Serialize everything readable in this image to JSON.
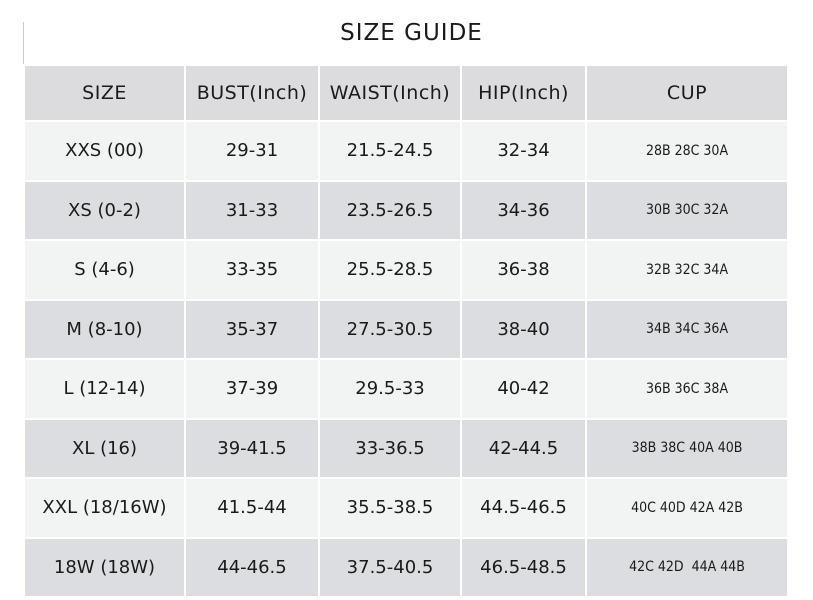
{
  "title": "SIZE GUIDE",
  "table": {
    "header": [
      "SIZE",
      "BUST(Inch)",
      "WAIST(Inch)",
      "HIP(Inch)",
      "CUP"
    ],
    "rows": [
      [
        "XXS (00)",
        "29-31",
        "21.5-24.5",
        "32-34",
        "28B 28C 30A"
      ],
      [
        "XS (0-2)",
        "31-33",
        "23.5-26.5",
        "34-36",
        "30B 30C 32A"
      ],
      [
        "S (4-6)",
        "33-35",
        "25.5-28.5",
        "36-38",
        "32B 32C 34A"
      ],
      [
        "M (8-10)",
        "35-37",
        "27.5-30.5",
        "38-40",
        "34B 34C 36A"
      ],
      [
        "L (12-14)",
        "37-39",
        "29.5-33",
        "40-42",
        "36B 36C 38A"
      ],
      [
        "XL (16)",
        "39-41.5",
        "33-36.5",
        "42-44.5",
        "38B 38C 40A 40B"
      ],
      [
        "XXL (18/16W)",
        "41.5-44",
        "35.5-38.5",
        "44.5-46.5",
        "40C 40D 42A 42B"
      ],
      [
        "18W (18W)",
        "44-46.5",
        "37.5-40.5",
        "46.5-48.5",
        "42C 42D  44A 44B"
      ]
    ]
  }
}
